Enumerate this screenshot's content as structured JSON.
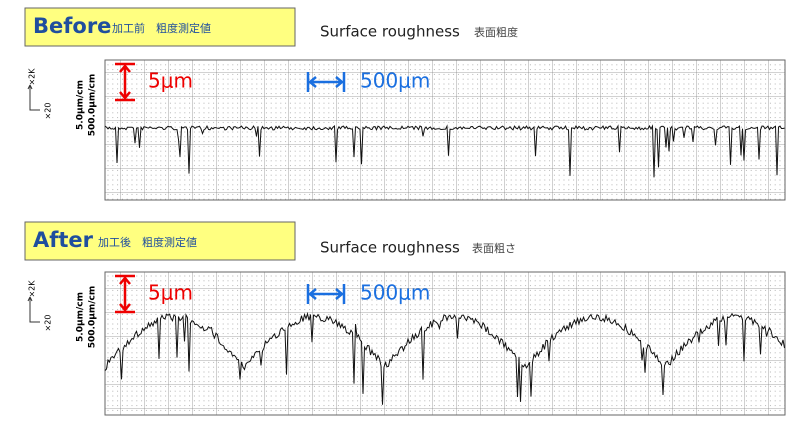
{
  "panels": [
    {
      "label": "Before",
      "label_sub": "加工前　粗度測定値",
      "title": "Surface roughness",
      "title_sub": "表面粗度",
      "v_scale": "5μm",
      "h_scale": "500μm",
      "axis_v": "5.0μm/cm",
      "axis_h": "500.0μm/cm",
      "mag_v": "×2K",
      "mag_h": "×20"
    },
    {
      "label": "After",
      "label_sub": "加工後　粗度測定値",
      "title": "Surface roughness",
      "title_sub": "表面粗さ",
      "v_scale": "5μm",
      "h_scale": "500μm",
      "axis_v": "5.0μm/cm",
      "axis_h": "500.0μm/cm",
      "mag_v": "×2K",
      "mag_h": "×20"
    }
  ]
}
